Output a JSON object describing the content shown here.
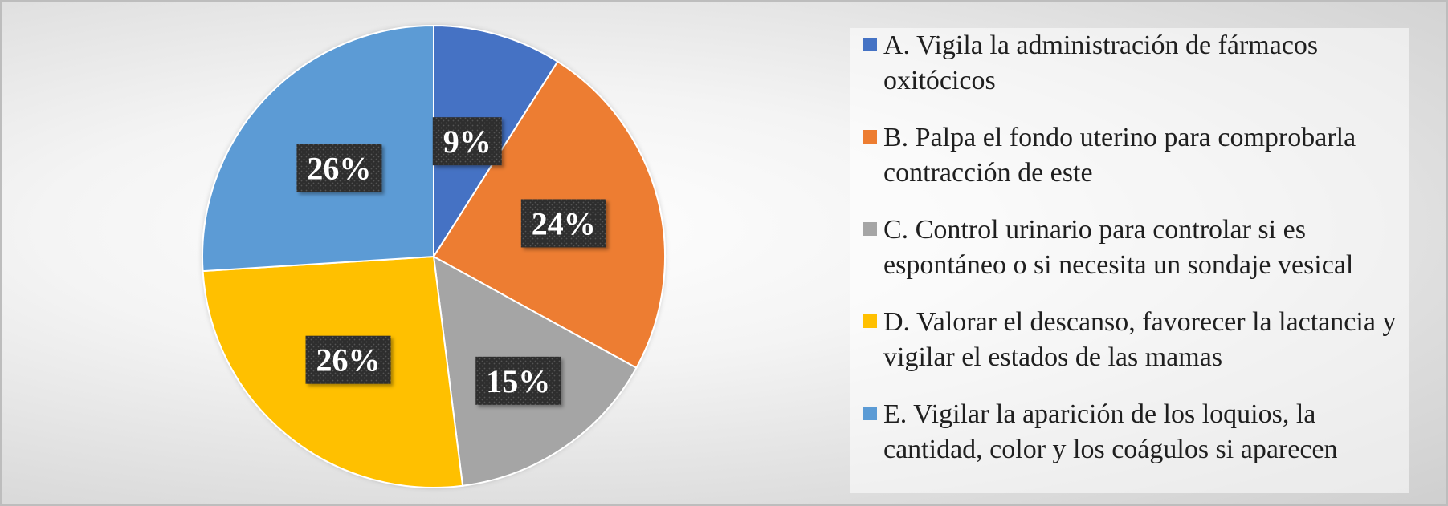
{
  "chart_data": {
    "type": "pie",
    "title": "",
    "categories": [
      "A. Vigila la administración de fármacos oxitócicos",
      "B. Palpa el fondo uterino para comprobarla contracción de este",
      "C. Control urinario para controlar si es espontáneo o si necesita un sondaje vesical",
      "D. Valorar el descanso, favorecer la lactancia y vigilar el estados de las mamas",
      "E. Vigilar la aparición de los loquios, la cantidad, color y los coágulos si aparecen"
    ],
    "values": [
      9,
      24,
      15,
      26,
      26
    ],
    "data_labels": [
      "9%",
      "24%",
      "15%",
      "26%",
      "26%"
    ],
    "colors": [
      "#4472C4",
      "#ED7D31",
      "#A5A5A5",
      "#FFC000",
      "#5B9BD5"
    ],
    "legend": "right"
  }
}
